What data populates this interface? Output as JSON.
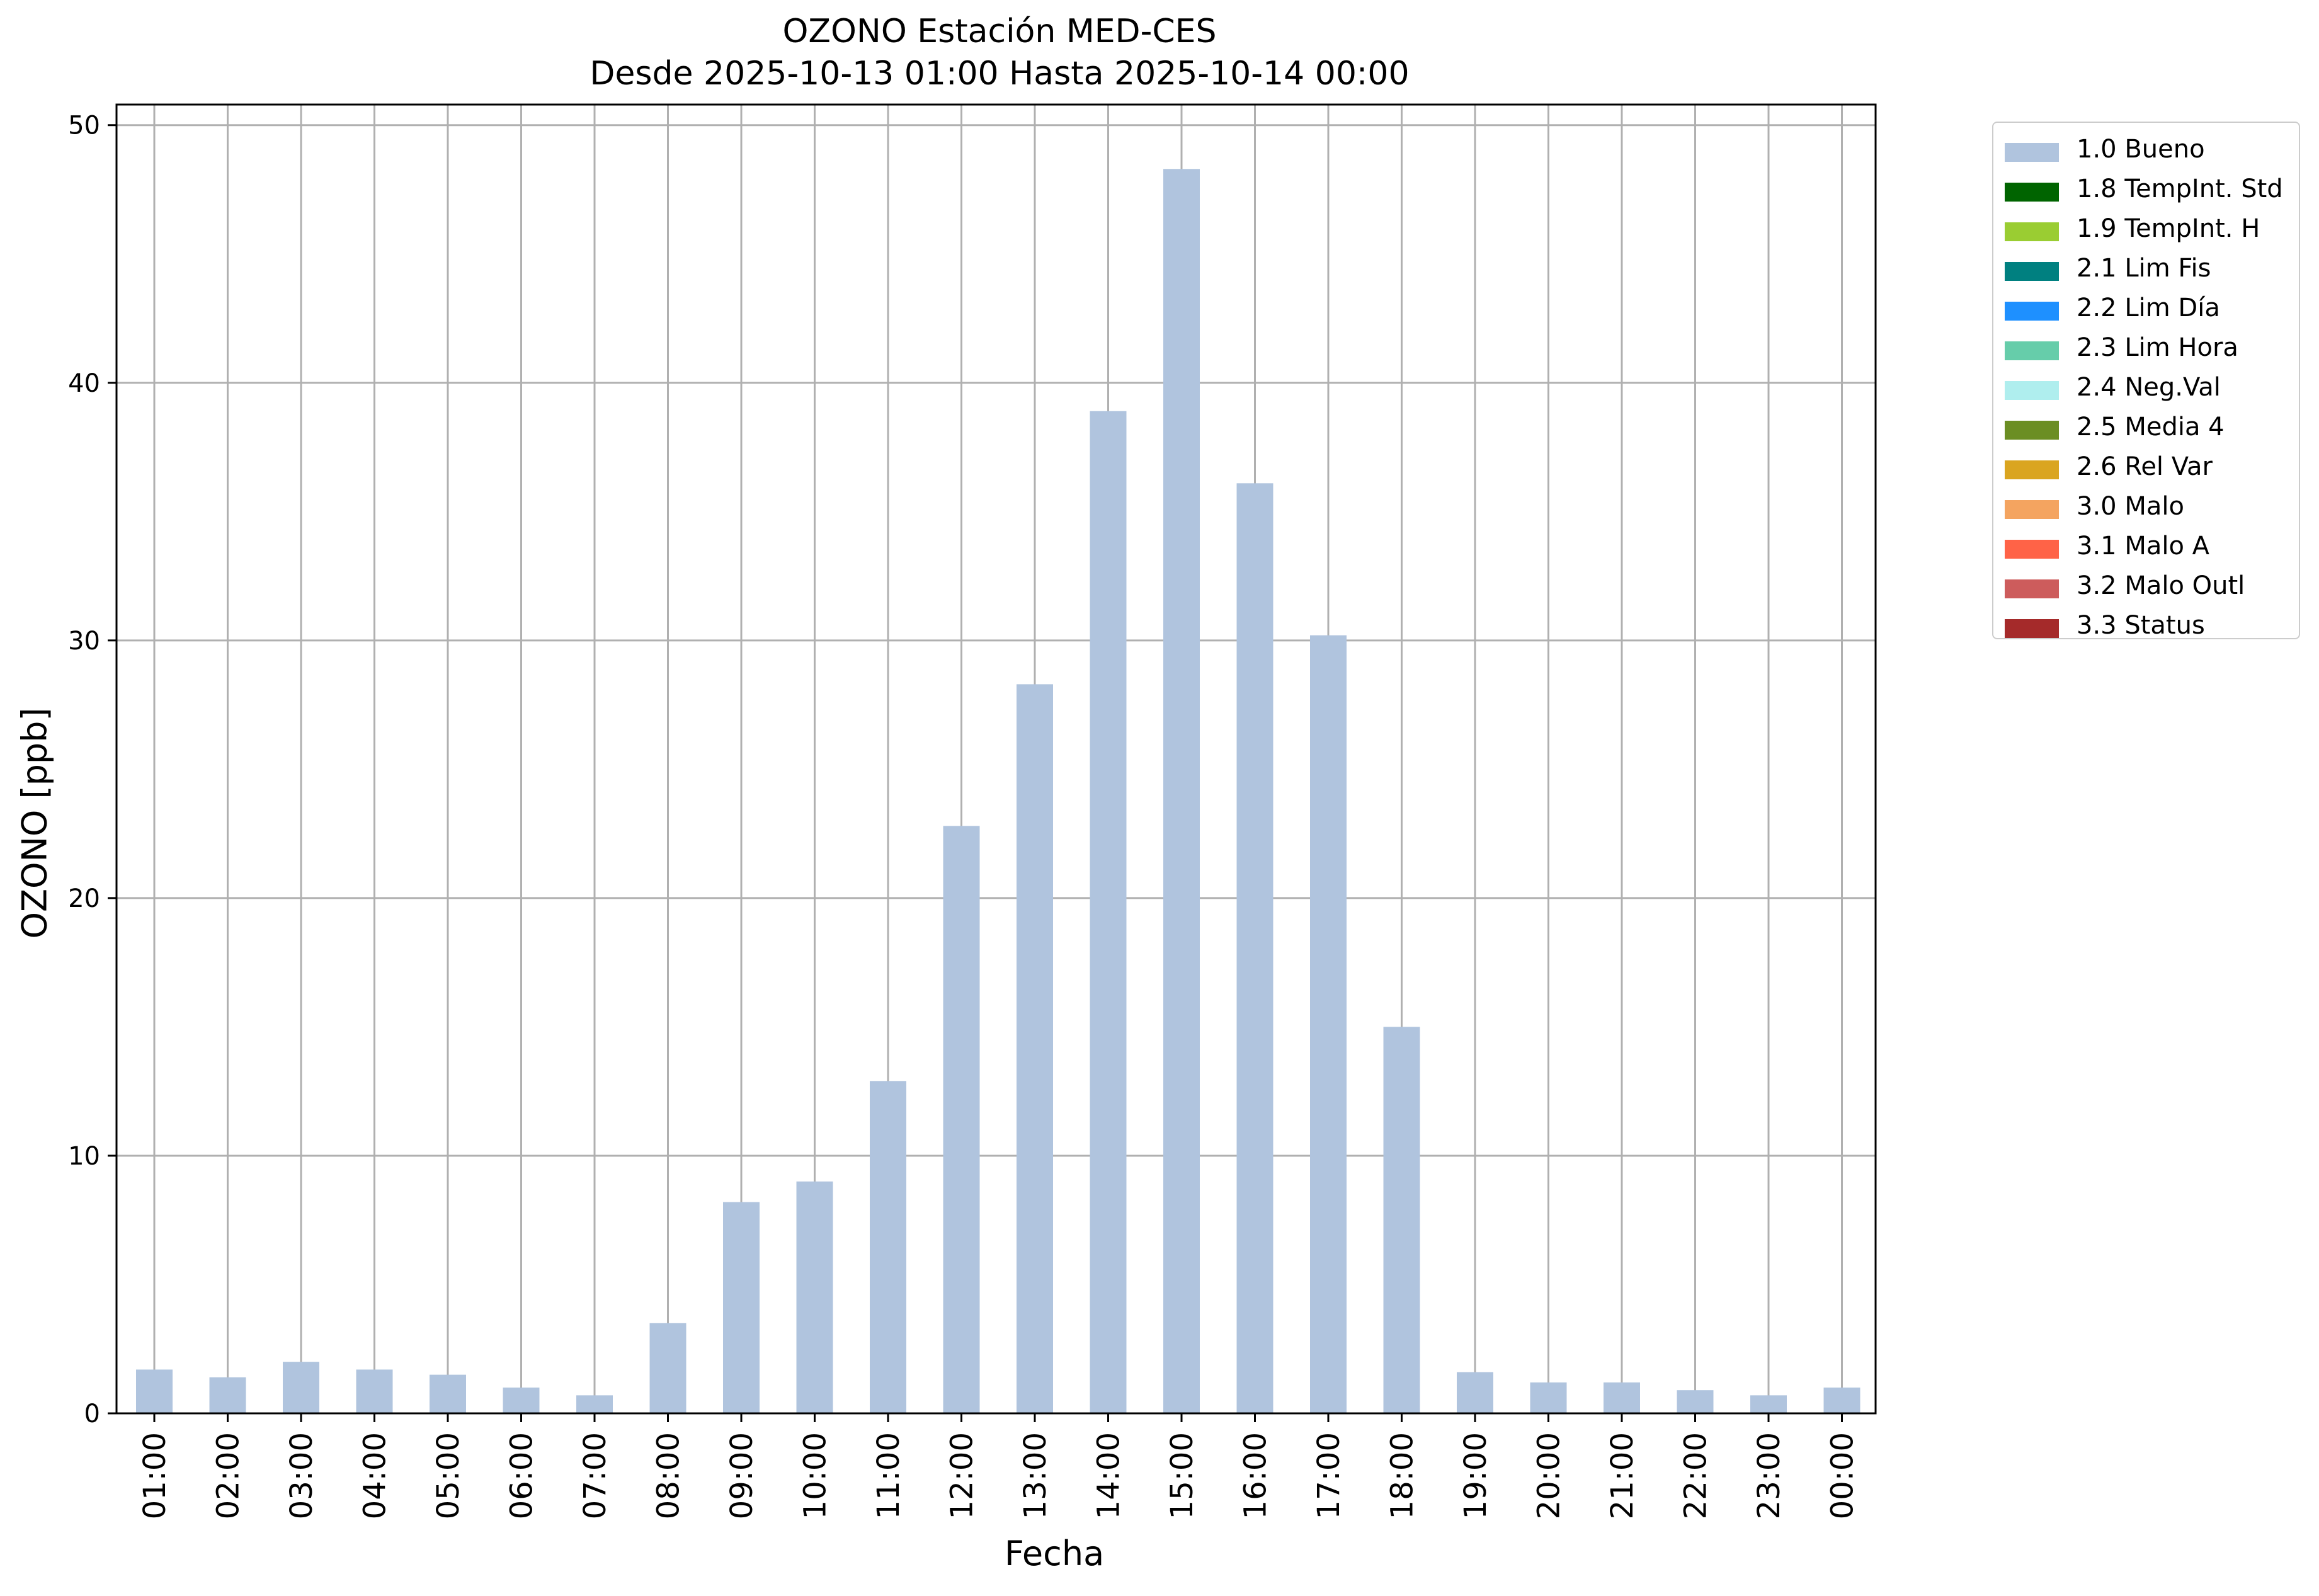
{
  "title": {
    "line1": "OZONO Estación MED-CES",
    "line2": "Desde 2025-10-13 01:00 Hasta 2025-10-14 00:00"
  },
  "chart_data": {
    "type": "bar",
    "title": "OZONO Estación MED-CES — Desde 2025-10-13 01:00 Hasta 2025-10-14 00:00",
    "xlabel": "Fecha",
    "ylabel": "OZONO [ppb]",
    "ylim": [
      0,
      50.8
    ],
    "yticks": [
      0,
      10,
      20,
      30,
      40,
      50
    ],
    "grid": true,
    "legend_position": "outside-top-right",
    "categories": [
      "01:00",
      "02:00",
      "03:00",
      "04:00",
      "05:00",
      "06:00",
      "07:00",
      "08:00",
      "09:00",
      "10:00",
      "11:00",
      "12:00",
      "13:00",
      "14:00",
      "15:00",
      "16:00",
      "17:00",
      "18:00",
      "19:00",
      "20:00",
      "21:00",
      "22:00",
      "23:00",
      "00:00"
    ],
    "series": [
      {
        "name": "1.0 Bueno",
        "color": "#b0c4de",
        "values": [
          1.7,
          1.4,
          2.0,
          1.7,
          1.5,
          1.0,
          0.7,
          3.5,
          8.2,
          9.0,
          12.9,
          22.8,
          28.3,
          38.9,
          48.3,
          36.1,
          30.2,
          15.0,
          1.6,
          1.2,
          1.2,
          0.9,
          0.7,
          1.0
        ]
      }
    ],
    "legend": [
      {
        "label": "1.0 Bueno",
        "color": "#b0c4de"
      },
      {
        "label": "1.8 TempInt. Std",
        "color": "#006400"
      },
      {
        "label": "1.9 TempInt. H",
        "color": "#9acd32"
      },
      {
        "label": "2.1 Lim Fis",
        "color": "#008080"
      },
      {
        "label": "2.2 Lim Día",
        "color": "#1e90ff"
      },
      {
        "label": "2.3 Lim Hora",
        "color": "#66cdaa"
      },
      {
        "label": "2.4 Neg.Val",
        "color": "#afeeee"
      },
      {
        "label": "2.5 Media 4",
        "color": "#6b8e23"
      },
      {
        "label": "2.6 Rel Var",
        "color": "#daa520"
      },
      {
        "label": "3.0 Malo",
        "color": "#f4a460"
      },
      {
        "label": "3.1 Malo A",
        "color": "#ff6347"
      },
      {
        "label": "3.2 Malo Outl",
        "color": "#cd5c5c"
      },
      {
        "label": "3.3 Status",
        "color": "#a52a2a"
      }
    ]
  }
}
